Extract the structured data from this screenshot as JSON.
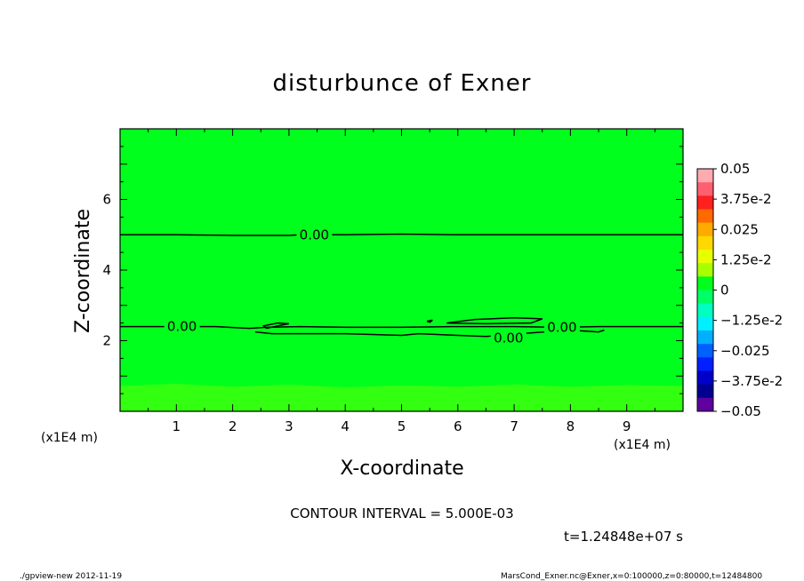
{
  "chart_data": {
    "type": "contour",
    "title": "disturbunce of Exner",
    "xlabel": "X-coordinate",
    "ylabel": "Z-coordinate",
    "x_unit": "(x1E4 m)",
    "y_unit": "(x1E4 m)",
    "xlim": [
      0,
      10
    ],
    "ylim": [
      0,
      8
    ],
    "x_ticks": [
      "1",
      "2",
      "3",
      "4",
      "5",
      "6",
      "7",
      "8",
      "9"
    ],
    "y_ticks": [
      "2",
      "4",
      "6"
    ],
    "contour_interval_text": "CONTOUR INTERVAL = 5.000E-03",
    "time_text": "t=1.24848e+07 s",
    "contour_labels": [
      {
        "text": "0.00",
        "x": 3.45,
        "z": 5.0
      },
      {
        "text": "0.00",
        "x": 1.1,
        "z": 2.4
      },
      {
        "text": "0.00",
        "x": 7.85,
        "z": 2.38
      },
      {
        "text": "0.00",
        "x": 6.9,
        "z": 2.08
      }
    ],
    "contour_lines": [
      [
        [
          0,
          5.0
        ],
        [
          1,
          5.0
        ],
        [
          2,
          4.98
        ],
        [
          3,
          4.98
        ],
        [
          3.2,
          5.0
        ],
        [
          4,
          5.0
        ],
        [
          5,
          5.02
        ],
        [
          6,
          5.0
        ],
        [
          7,
          5.0
        ],
        [
          8,
          5.0
        ],
        [
          9,
          5.0
        ],
        [
          10,
          5.0
        ]
      ],
      [
        [
          0,
          2.4
        ],
        [
          0.8,
          2.4
        ],
        [
          1.7,
          2.4
        ],
        [
          2.3,
          2.35
        ],
        [
          2.6,
          2.38
        ],
        [
          3.2,
          2.4
        ],
        [
          4,
          2.38
        ],
        [
          5,
          2.38
        ],
        [
          6,
          2.4
        ],
        [
          7,
          2.4
        ],
        [
          7.8,
          2.38
        ],
        [
          8.5,
          2.4
        ],
        [
          10,
          2.4
        ]
      ],
      [
        [
          2.4,
          2.25
        ],
        [
          2.7,
          2.2
        ],
        [
          3.0,
          2.2
        ],
        [
          4,
          2.2
        ],
        [
          5,
          2.15
        ],
        [
          5.3,
          2.2
        ],
        [
          6,
          2.15
        ],
        [
          6.5,
          2.12
        ],
        [
          7.1,
          2.2
        ],
        [
          8,
          2.3
        ],
        [
          8.5,
          2.25
        ],
        [
          8.6,
          2.3
        ]
      ],
      [
        [
          2.6,
          2.35
        ],
        [
          2.8,
          2.42
        ],
        [
          3.0,
          2.48
        ],
        [
          2.8,
          2.5
        ],
        [
          2.55,
          2.42
        ],
        [
          2.6,
          2.35
        ]
      ],
      [
        [
          5.8,
          2.5
        ],
        [
          6.3,
          2.6
        ],
        [
          7.0,
          2.65
        ],
        [
          7.5,
          2.62
        ],
        [
          7.3,
          2.5
        ],
        [
          6.5,
          2.48
        ],
        [
          5.8,
          2.5
        ]
      ],
      [
        [
          5.45,
          2.55
        ],
        [
          5.55,
          2.58
        ],
        [
          5.5,
          2.52
        ],
        [
          5.45,
          2.55
        ]
      ]
    ],
    "fill_colors": {
      "main": "#00ff1c",
      "bottom_band": "#33ff11"
    },
    "colorbar": {
      "labels": [
        "0.05",
        "3.75e-2",
        "0.025",
        "1.25e-2",
        "0",
        "−1.25e-2",
        "−0.025",
        "−3.75e-2",
        "−0.05"
      ],
      "colors": [
        "#ffaab0",
        "#ff6070",
        "#ff2020",
        "#ff6a00",
        "#ffaa00",
        "#ffd800",
        "#e8ff00",
        "#a8ff00",
        "#00ff1c",
        "#00ff66",
        "#00ffc0",
        "#00f0ff",
        "#00b0ff",
        "#0060ff",
        "#0020ff",
        "#0000c8",
        "#000090",
        "#6000a0"
      ]
    }
  },
  "footer": {
    "left": "./gpview-new   2012-11-19",
    "right": "MarsCond_Exner.nc@Exner,x=0:100000,z=0:80000,t=12484800"
  }
}
